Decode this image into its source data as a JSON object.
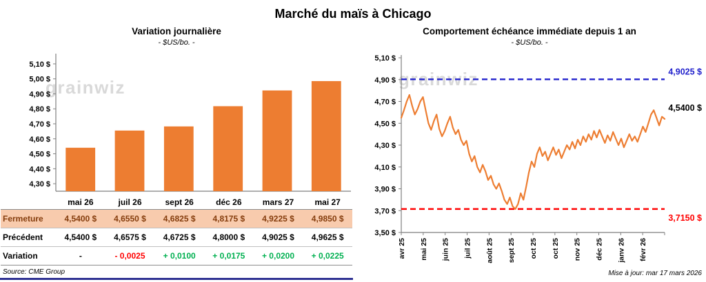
{
  "page": {
    "title": "Marché du maïs à Chicago",
    "source": "Source: CME Group",
    "updated": "Mise à jour: mar 17 mars 2026",
    "watermark": "grainwiz"
  },
  "colors": {
    "accent_orange": "#ED7D31",
    "fermeture_bg": "#F8CBAD",
    "fermeture_text": "#843C0C",
    "negative": "#FF0000",
    "positive": "#00B050",
    "high_line_blue": "#2222CC",
    "low_line_red": "#FF0000",
    "axis": "#7F7F7F",
    "watermark": "#D9D9D9",
    "footer_rule": "#2E3192"
  },
  "chart_data": [
    {
      "type": "bar",
      "title": "Variation journalière",
      "subtitle": "- $US/bo. -",
      "categories": [
        "mai 26",
        "juil 26",
        "sept 26",
        "déc 26",
        "mars 27",
        "mai 27"
      ],
      "values": [
        4.54,
        4.655,
        4.6825,
        4.8175,
        4.9225,
        4.985
      ],
      "bar_color": "#ED7D31",
      "ylim": [
        4.25,
        5.15
      ],
      "yticks": [
        4.3,
        4.4,
        4.5,
        4.6,
        4.7,
        4.8,
        4.9,
        5.0,
        5.1
      ],
      "ytick_labels": [
        "4,30 $",
        "4,40 $",
        "4,50 $",
        "4,60 $",
        "4,70 $",
        "4,80 $",
        "4,90 $",
        "5,00 $",
        "5,10 $"
      ],
      "grid": false,
      "legend": "none"
    },
    {
      "type": "line",
      "title": "Comportement échéance immédiate depuis 1 an",
      "subtitle": "- $US/bo. -",
      "x_labels": [
        "avr 25",
        "mai 25",
        "juin 25",
        "juil 25",
        "août 25",
        "sept 25",
        "oct 25",
        "oct 25",
        "nov 25",
        "déc 25",
        "janv 26",
        "févr 26"
      ],
      "ylim": [
        3.5,
        5.1
      ],
      "yticks": [
        3.5,
        3.7,
        3.9,
        4.1,
        4.3,
        4.5,
        4.7,
        4.9,
        5.1
      ],
      "ytick_labels": [
        "3,50 $",
        "3,70 $",
        "3,90 $",
        "4,10 $",
        "4,30 $",
        "4,50 $",
        "4,70 $",
        "4,90 $",
        "5,10 $"
      ],
      "grid": false,
      "legend": "none",
      "series": [
        {
          "name": "prix échéance immédiate",
          "color": "#ED7D31",
          "values": [
            4.55,
            4.62,
            4.7,
            4.76,
            4.66,
            4.58,
            4.63,
            4.7,
            4.74,
            4.62,
            4.5,
            4.44,
            4.52,
            4.58,
            4.45,
            4.38,
            4.43,
            4.5,
            4.56,
            4.46,
            4.4,
            4.44,
            4.35,
            4.3,
            4.34,
            4.22,
            4.15,
            4.2,
            4.1,
            4.05,
            4.12,
            4.06,
            3.98,
            4.02,
            3.94,
            3.9,
            3.95,
            3.88,
            3.8,
            3.76,
            3.82,
            3.74,
            3.715,
            3.76,
            3.86,
            3.8,
            3.92,
            4.05,
            4.15,
            4.1,
            4.22,
            4.28,
            4.2,
            4.24,
            4.16,
            4.22,
            4.28,
            4.21,
            4.26,
            4.18,
            4.24,
            4.3,
            4.26,
            4.33,
            4.27,
            4.35,
            4.3,
            4.38,
            4.33,
            4.4,
            4.35,
            4.43,
            4.37,
            4.44,
            4.38,
            4.32,
            4.39,
            4.34,
            4.42,
            4.36,
            4.3,
            4.36,
            4.28,
            4.34,
            4.4,
            4.34,
            4.38,
            4.33,
            4.4,
            4.47,
            4.42,
            4.5,
            4.58,
            4.62,
            4.55,
            4.48,
            4.56,
            4.54
          ]
        }
      ],
      "ref_lines": [
        {
          "id": "high",
          "value": 4.9025,
          "label": "4,9025 $",
          "color": "#2222CC",
          "style": "dashed",
          "label_pos": "above"
        },
        {
          "id": "low",
          "value": 3.715,
          "label": "3,7150 $",
          "color": "#FF0000",
          "style": "dashed",
          "label_pos": "below"
        }
      ],
      "last_label": {
        "value": 4.54,
        "label": "4,5400 $",
        "color": "#000000"
      }
    }
  ],
  "table": {
    "rows": [
      {
        "style": "fermeture",
        "label": "Fermeture",
        "values": [
          "4,5400 $",
          "4,6550 $",
          "4,6825 $",
          "4,8175 $",
          "4,9225 $",
          "4,9850 $"
        ]
      },
      {
        "style": "precedent",
        "label": "Précédent",
        "values": [
          "4,5400 $",
          "4,6575 $",
          "4,6725 $",
          "4,8000 $",
          "4,9025 $",
          "4,9625 $"
        ]
      },
      {
        "style": "variation",
        "label": "Variation",
        "values": [
          "-",
          "- 0,0025",
          "+ 0,0100",
          "+ 0,0175",
          "+ 0,0200",
          "+ 0,0225"
        ],
        "value_styles": [
          "neutral",
          "negative",
          "positive",
          "positive",
          "positive",
          "positive"
        ]
      }
    ]
  }
}
